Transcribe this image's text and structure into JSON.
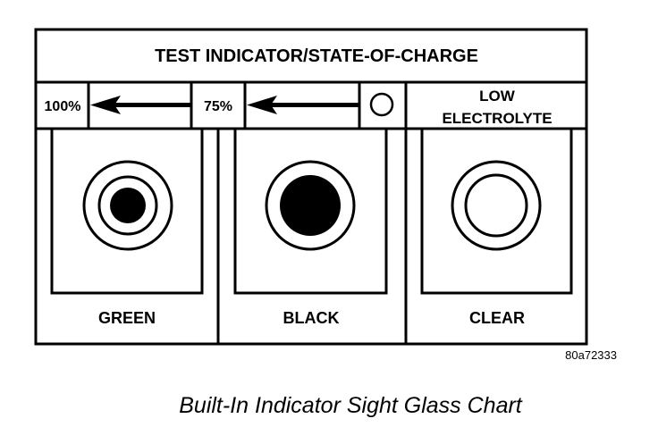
{
  "title": "TEST INDICATOR/STATE-OF-CHARGE",
  "scale": {
    "full": "100%",
    "partial": "75%",
    "low_line1": "LOW",
    "low_line2": "ELECTROLYTE"
  },
  "indicators": [
    {
      "label": "GREEN",
      "appearance": "concentric rings with small black dot"
    },
    {
      "label": "BLACK",
      "appearance": "ring with large black dot"
    },
    {
      "label": "CLEAR",
      "appearance": "double open ring"
    }
  ],
  "figure_id": "80a72333",
  "caption": "Built-In Indicator Sight Glass Chart",
  "colors": {
    "ink": "#000000",
    "background": "#ffffff"
  }
}
